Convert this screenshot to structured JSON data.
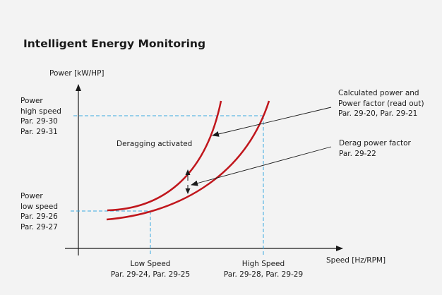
{
  "title": "Intelligent Energy Monitoring",
  "y_axis_label": "Power [kW/HP]",
  "x_axis_label": "Speed [Hz/RPM]",
  "power_high": [
    "Power",
    "high speed",
    "Par. 29-30",
    "Par. 29-31"
  ],
  "power_low": [
    "Power",
    "low speed",
    "Par. 29-26",
    "Par. 29-27"
  ],
  "low_speed": [
    "Low Speed",
    "Par. 29-24, Par. 29-25"
  ],
  "high_speed": [
    "High Speed",
    "Par. 29-28, Par. 29-29"
  ],
  "deragging_label": "Deragging activated",
  "calculated_power": [
    "Calculated power and",
    "Power factor (read out)",
    "Par. 29-20, Par. 29-21"
  ],
  "derag_power_factor": [
    "Derag power factor",
    "Par. 29-22"
  ],
  "colors": {
    "curve": "#c0161c",
    "guide": "#3aa8e0",
    "axis": "#1a1a1a"
  }
}
